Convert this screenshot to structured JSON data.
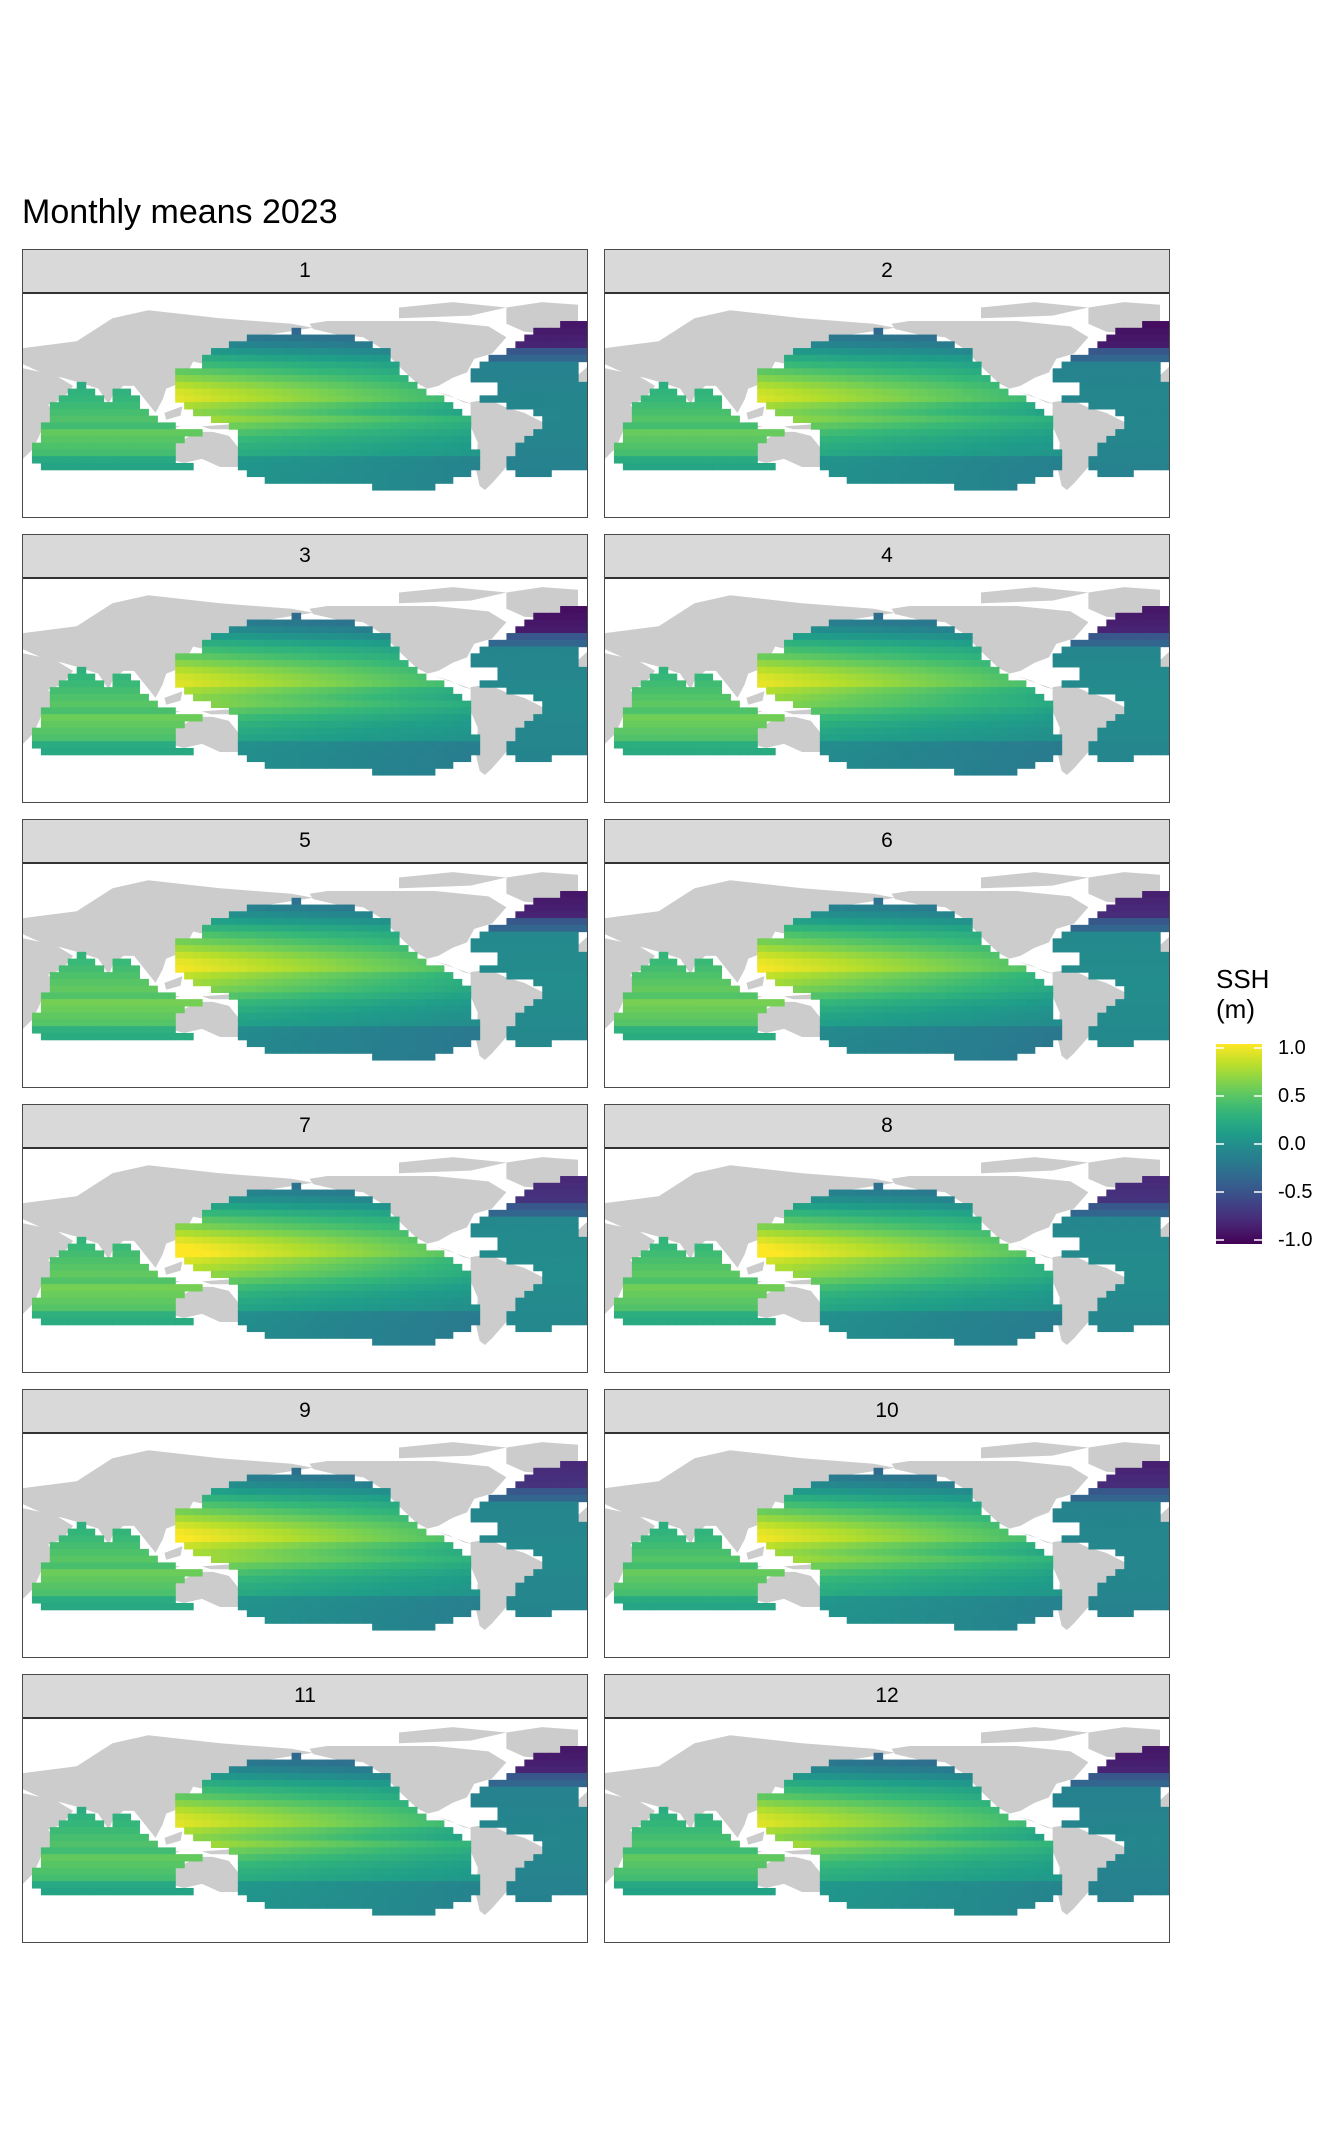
{
  "chart_data": {
    "type": "heatmap",
    "title": "Monthly means 2023",
    "facet_variable": "month",
    "facets": [
      "1",
      "2",
      "3",
      "4",
      "5",
      "6",
      "7",
      "8",
      "9",
      "10",
      "11",
      "12"
    ],
    "layout": {
      "columns": 2,
      "rows": 6
    },
    "legend": {
      "title_line1": "SSH",
      "title_line2": "(m)",
      "placement": "right",
      "colormap": "viridis",
      "range": [
        -1.0,
        1.0
      ],
      "ticks": [
        {
          "value": 1.0,
          "label": "1.0"
        },
        {
          "value": 0.5,
          "label": "0.5"
        },
        {
          "value": 0.0,
          "label": "0.0"
        },
        {
          "value": -0.5,
          "label": "-0.5"
        },
        {
          "value": -1.0,
          "label": "-1.0"
        }
      ]
    },
    "map_extent_deg": {
      "lon": [
        30,
        345
      ],
      "lat": [
        -75,
        90
      ]
    },
    "monthly_ssh_summary": [
      {
        "month": 1,
        "western_pacific_max": 0.95,
        "north_atlantic_min": -0.9
      },
      {
        "month": 2,
        "western_pacific_max": 0.9,
        "north_atlantic_min": -0.95
      },
      {
        "month": 3,
        "western_pacific_max": 0.9,
        "north_atlantic_min": -0.95
      },
      {
        "month": 4,
        "western_pacific_max": 0.9,
        "north_atlantic_min": -0.9
      },
      {
        "month": 5,
        "western_pacific_max": 0.92,
        "north_atlantic_min": -0.9
      },
      {
        "month": 6,
        "western_pacific_max": 0.92,
        "north_atlantic_min": -0.85
      },
      {
        "month": 7,
        "western_pacific_max": 1.0,
        "north_atlantic_min": -0.8
      },
      {
        "month": 8,
        "western_pacific_max": 1.0,
        "north_atlantic_min": -0.8
      },
      {
        "month": 9,
        "western_pacific_max": 1.0,
        "north_atlantic_min": -0.8
      },
      {
        "month": 10,
        "western_pacific_max": 0.98,
        "north_atlantic_min": -0.85
      },
      {
        "month": 11,
        "western_pacific_max": 0.95,
        "north_atlantic_min": -0.9
      },
      {
        "month": 12,
        "western_pacific_max": 0.95,
        "north_atlantic_min": -0.9
      }
    ],
    "colors": {
      "land": "#cccccc",
      "no_data": "#ffffff",
      "strip": "#d9d9d9"
    }
  }
}
